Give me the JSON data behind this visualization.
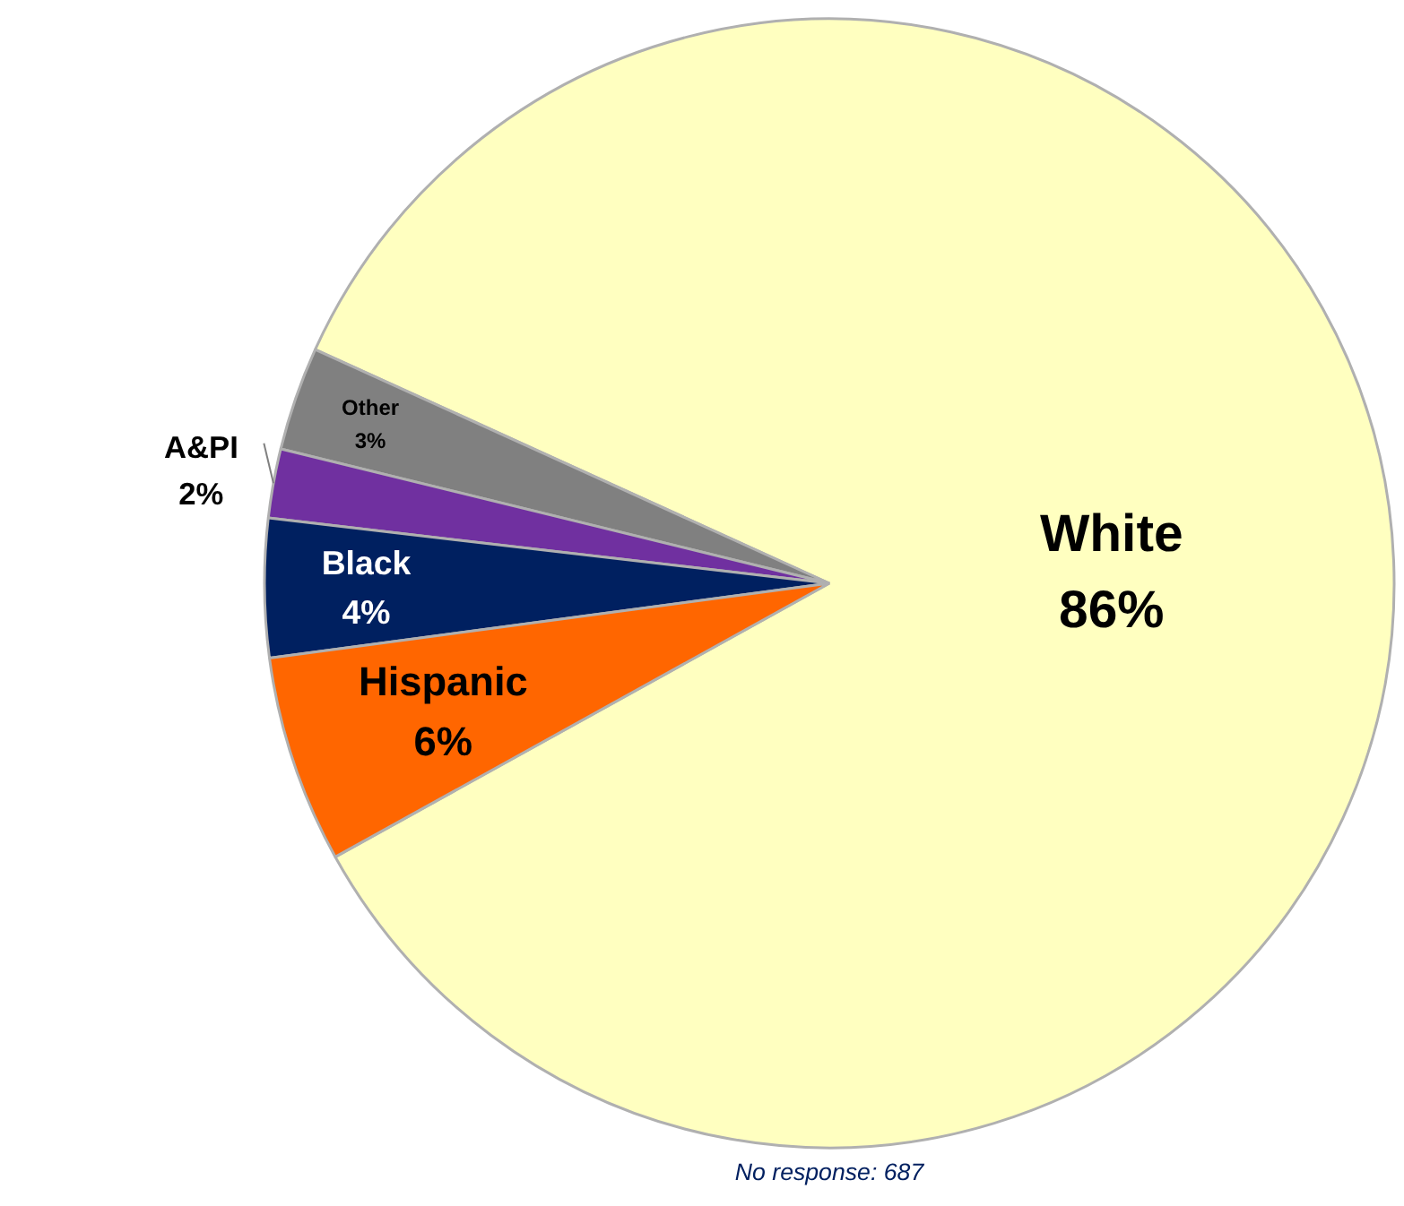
{
  "chart_data": {
    "type": "pie",
    "categories": [
      "White",
      "Other",
      "A&PI",
      "Black",
      "Hispanic"
    ],
    "values": [
      86,
      3,
      2,
      4,
      6
    ],
    "colors": [
      "#ffffc0",
      "#808080",
      "#7030a0",
      "#002060",
      "#ff6600"
    ],
    "value_labels": [
      "86%",
      "3%",
      "2%",
      "4%",
      "6%"
    ],
    "annotations": [
      "No response: 687"
    ]
  }
}
